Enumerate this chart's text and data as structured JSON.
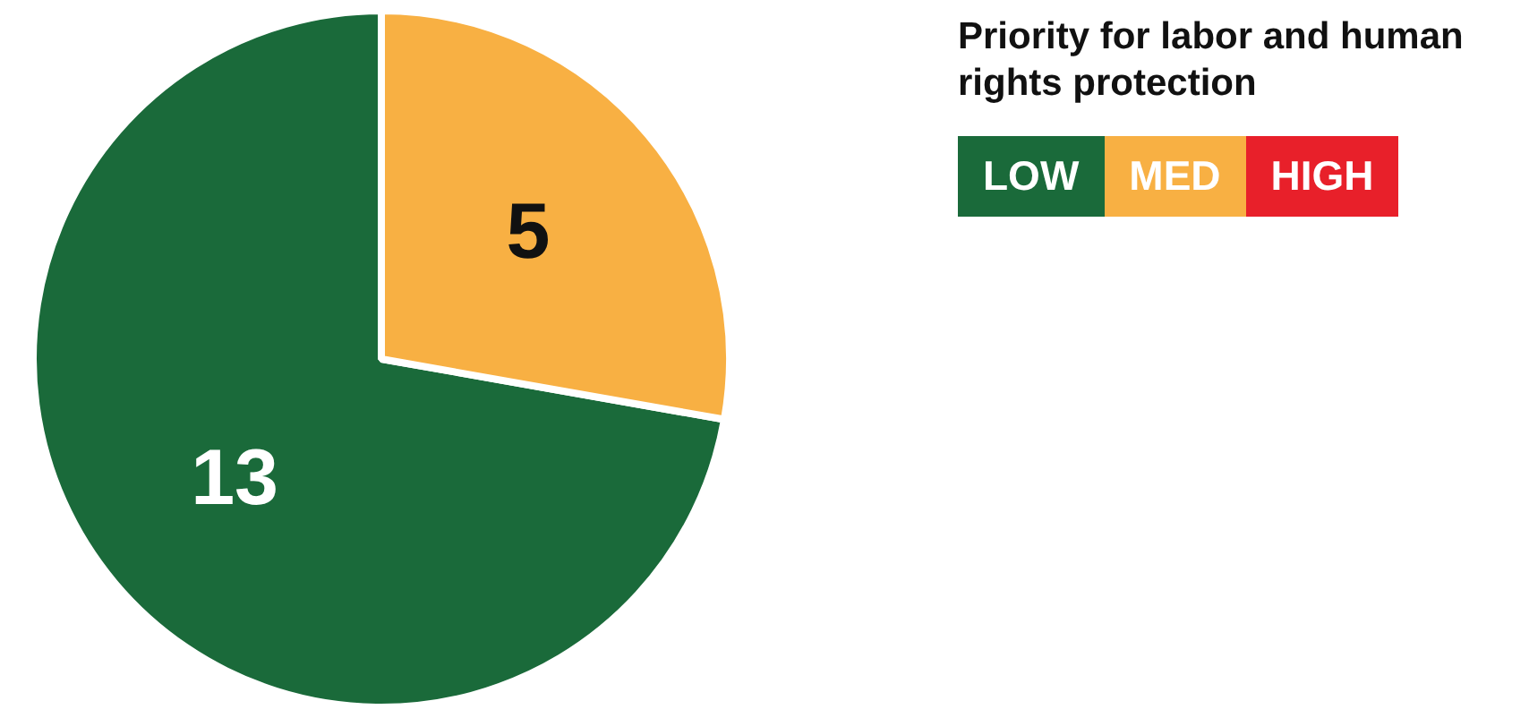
{
  "chart_data": {
    "type": "pie",
    "legend_title": "Priority for labor and human rights protection",
    "categories": [
      "LOW",
      "MED",
      "HIGH"
    ],
    "values": [
      13,
      5,
      0
    ],
    "colors": [
      "#1a6a3a",
      "#f8b043",
      "#e8202a"
    ],
    "value_labels": [
      "13",
      "5",
      null
    ],
    "legend": "top right"
  }
}
